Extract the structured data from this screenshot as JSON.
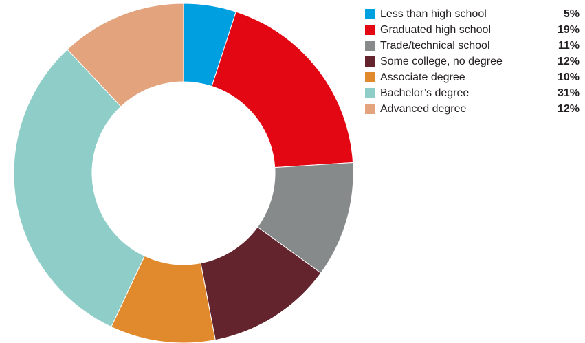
{
  "chart_data": {
    "type": "pie",
    "title": "",
    "categories": [
      "Less than high school",
      "Graduated high school",
      "Trade/technical school",
      "Some college, no degree",
      "Associate degree",
      "Bachelor’s degree",
      "Advanced degree"
    ],
    "values": [
      5,
      19,
      11,
      12,
      10,
      31,
      12
    ],
    "value_labels": [
      "5%",
      "19%",
      "11%",
      "12%",
      "10%",
      "31%",
      "12%"
    ],
    "colors": [
      "#009fdf",
      "#e30613",
      "#878a8b",
      "#63242e",
      "#e08a2d",
      "#8ecdc8",
      "#e3a37d"
    ],
    "donut": true,
    "legend_position": "top-right"
  }
}
